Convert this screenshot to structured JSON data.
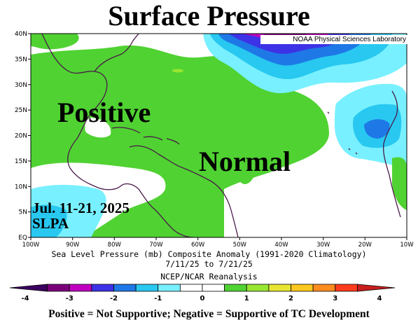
{
  "title": "Surface Pressure",
  "credit": "NOAA Physical Sciences Laboratory",
  "labels": {
    "positive": "Positive",
    "normal": "Normal",
    "date_line1": "Jul. 11-21, 2025",
    "date_line2": "SLPA"
  },
  "map": {
    "lat_ticks": [
      "EQ",
      "5N",
      "10N",
      "15N",
      "20N",
      "25N",
      "30N",
      "35N",
      "40N"
    ],
    "lon_ticks": [
      "100W",
      "90W",
      "80W",
      "70W",
      "60W",
      "50W",
      "40W",
      "30W",
      "20W",
      "10W"
    ]
  },
  "captions": {
    "line1": "Sea Level Pressure (mb) Composite Anomaly (1991-2020 Climatology)",
    "line2": "7/11/25  to 7/21/25",
    "line3": "NCEP/NCAR Reanalysis"
  },
  "colorbar": {
    "ticks": [
      "-4",
      "-3",
      "-2",
      "-1",
      "0",
      "1",
      "2",
      "3",
      "4"
    ],
    "colors": [
      "#3c0060",
      "#7a007a",
      "#c000c0",
      "#3c32e6",
      "#1e78e6",
      "#28c8f0",
      "#78f0ff",
      "#ffffff",
      "#ffffff",
      "#50d232",
      "#98e632",
      "#e6e632",
      "#ffc81e",
      "#ff8c1e",
      "#ff3c1e",
      "#c81e1e"
    ]
  },
  "footer": "Positive = Not Supportive; Negative = Supportive of TC Development"
}
